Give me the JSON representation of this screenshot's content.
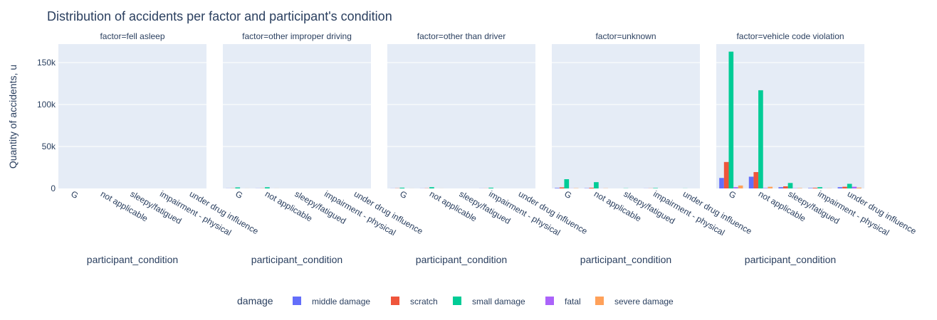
{
  "chart_data": {
    "type": "bar",
    "title": "Distribution of accidents per factor and participant's condition",
    "ylabel": "Quantity of accidents, u",
    "xlabel": "participant_condition",
    "ylim": [
      0,
      172000
    ],
    "ytick_values": [
      0,
      50000,
      100000,
      150000
    ],
    "ytick_labels": [
      "0",
      "50k",
      "100k",
      "150k"
    ],
    "categories": [
      "G",
      "not applicable",
      "sleepy/fatigued",
      "impairment - physical",
      "under drug influence"
    ],
    "legend_title": "damage",
    "colors": [
      "#636efa",
      "#EF553B",
      "#00cc96",
      "#ab63fa",
      "#FFA15A"
    ],
    "facets": [
      {
        "title": "factor=fell asleep",
        "series": [
          {
            "name": "middle damage",
            "values": [
              0,
              0,
              0,
              0,
              0
            ]
          },
          {
            "name": "scratch",
            "values": [
              0,
              0,
              0,
              0,
              0
            ]
          },
          {
            "name": "small damage",
            "values": [
              0,
              0,
              0,
              0,
              0
            ]
          },
          {
            "name": "fatal",
            "values": [
              0,
              0,
              0,
              0,
              0
            ]
          },
          {
            "name": "severe damage",
            "values": [
              0,
              0,
              0,
              0,
              0
            ]
          }
        ]
      },
      {
        "title": "factor=other improper driving",
        "series": [
          {
            "name": "middle damage",
            "values": [
              100,
              100,
              0,
              0,
              0
            ]
          },
          {
            "name": "scratch",
            "values": [
              150,
              150,
              0,
              0,
              0
            ]
          },
          {
            "name": "small damage",
            "values": [
              1200,
              1400,
              0,
              0,
              0
            ]
          },
          {
            "name": "fatal",
            "values": [
              0,
              0,
              0,
              0,
              0
            ]
          },
          {
            "name": "severe damage",
            "values": [
              50,
              50,
              0,
              0,
              0
            ]
          }
        ]
      },
      {
        "title": "factor=other than driver",
        "series": [
          {
            "name": "middle damage",
            "values": [
              100,
              100,
              0,
              100,
              0
            ]
          },
          {
            "name": "scratch",
            "values": [
              200,
              200,
              0,
              100,
              0
            ]
          },
          {
            "name": "small damage",
            "values": [
              900,
              1500,
              0,
              900,
              0
            ]
          },
          {
            "name": "fatal",
            "values": [
              0,
              0,
              0,
              0,
              0
            ]
          },
          {
            "name": "severe damage",
            "values": [
              50,
              50,
              0,
              0,
              0
            ]
          }
        ]
      },
      {
        "title": "factor=unknown",
        "series": [
          {
            "name": "middle damage",
            "values": [
              600,
              300,
              0,
              100,
              0
            ]
          },
          {
            "name": "scratch",
            "values": [
              1200,
              800,
              0,
              150,
              0
            ]
          },
          {
            "name": "small damage",
            "values": [
              11000,
              7500,
              200,
              500,
              100
            ]
          },
          {
            "name": "fatal",
            "values": [
              100,
              50,
              0,
              0,
              0
            ]
          },
          {
            "name": "severe damage",
            "values": [
              300,
              200,
              0,
              0,
              0
            ]
          }
        ]
      },
      {
        "title": "factor=vehicle code violation",
        "series": [
          {
            "name": "middle damage",
            "values": [
              12500,
              14000,
              1500,
              500,
              1500
            ]
          },
          {
            "name": "scratch",
            "values": [
              31500,
              19500,
              2500,
              800,
              2000
            ]
          },
          {
            "name": "small damage",
            "values": [
              163000,
              117000,
              6500,
              1500,
              5500
            ]
          },
          {
            "name": "fatal",
            "values": [
              1500,
              500,
              300,
              100,
              2000
            ]
          },
          {
            "name": "severe damage",
            "values": [
              3500,
              2000,
              500,
              200,
              1000
            ]
          }
        ]
      }
    ]
  }
}
